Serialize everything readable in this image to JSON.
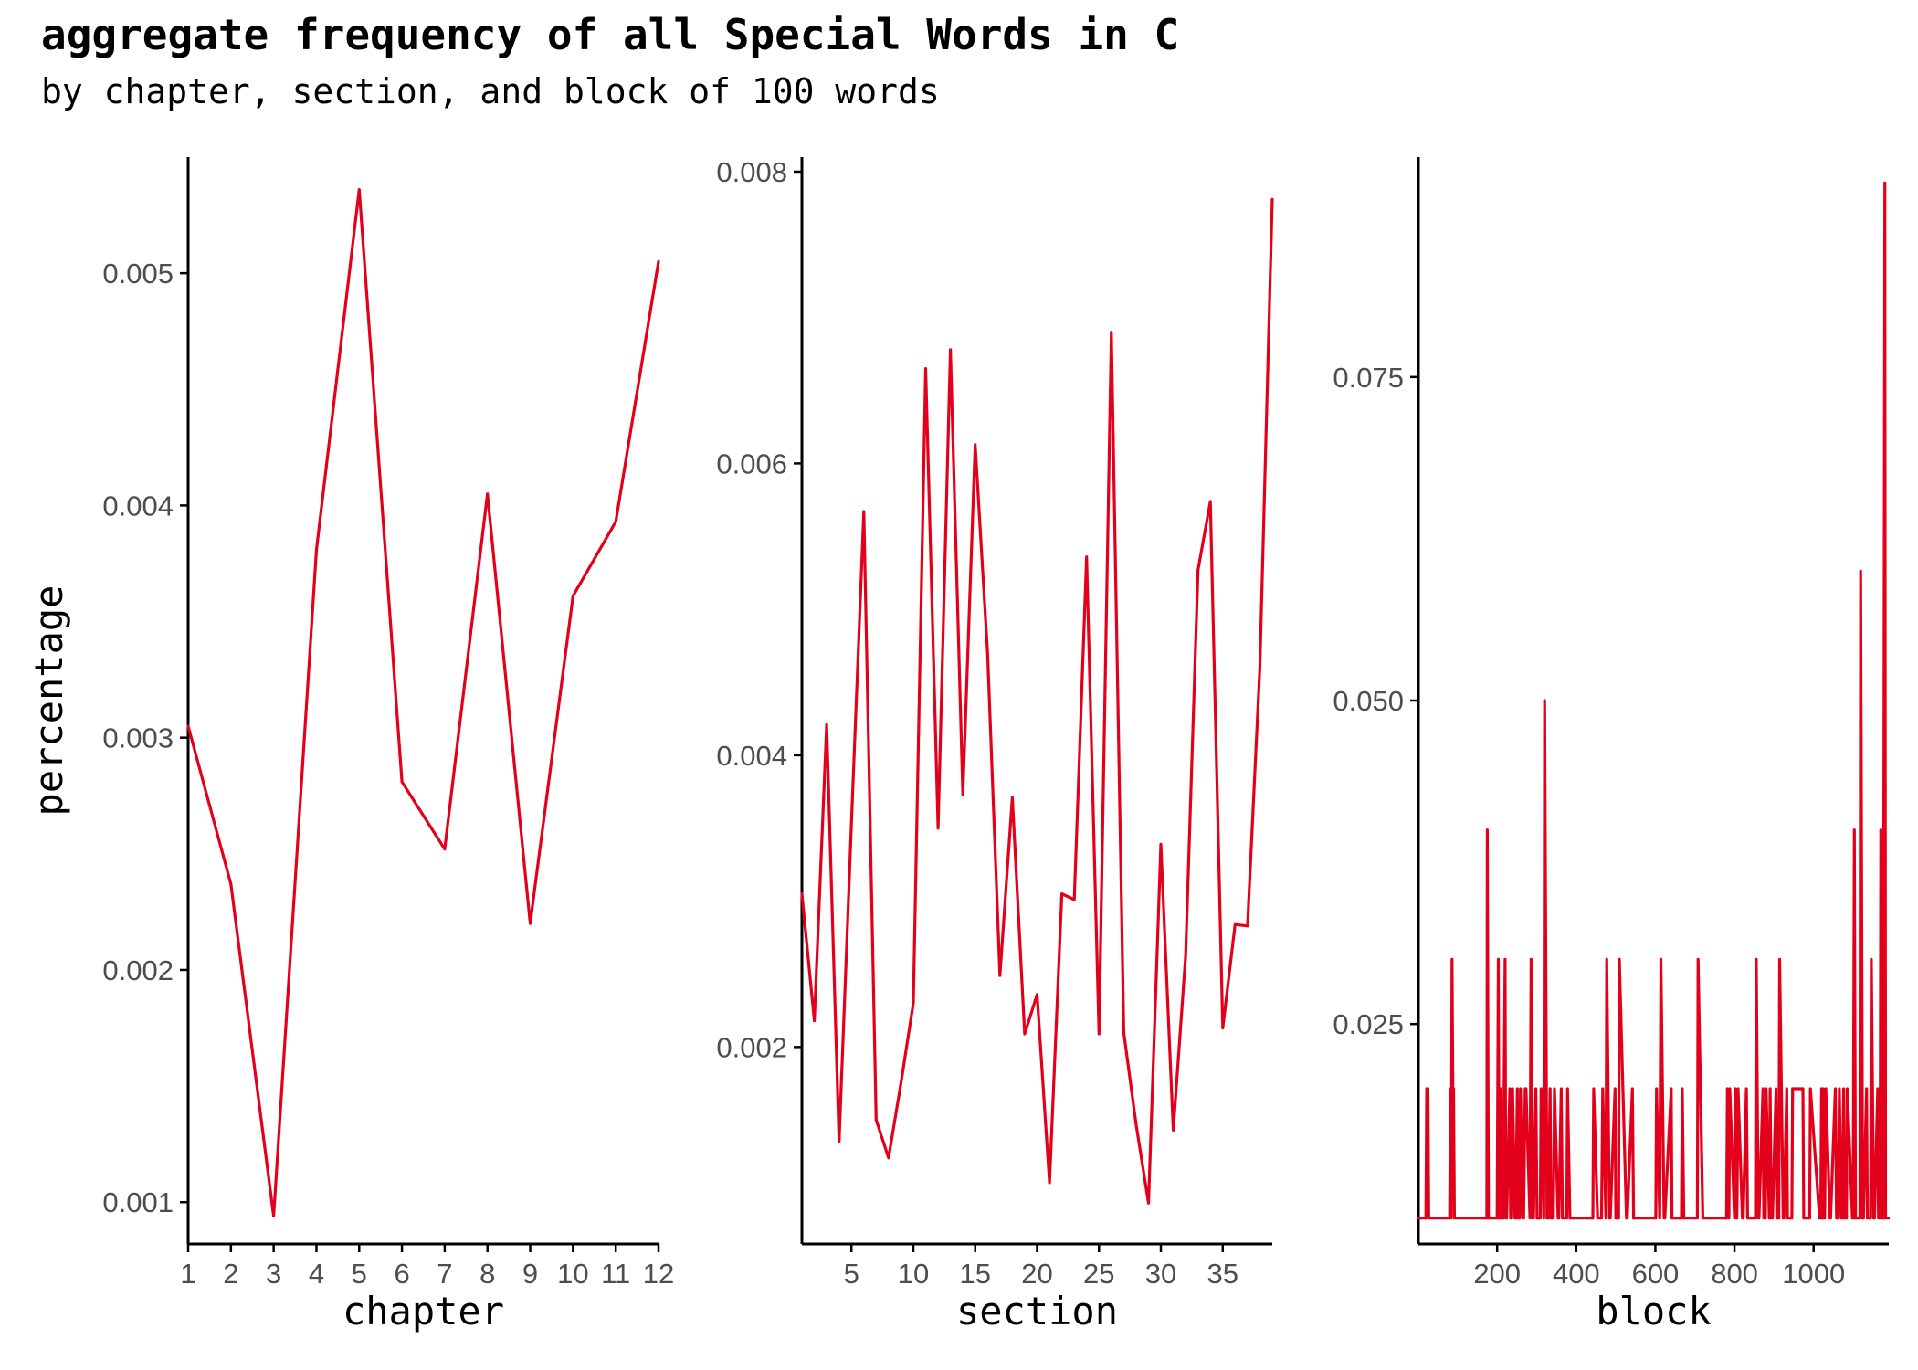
{
  "title": "aggregate frequency of all Special Words in C",
  "subtitle": "by chapter, section, and block of 100 words",
  "line_color": "#e3001b",
  "chart_data": [
    {
      "type": "line",
      "panel": "chapter",
      "xlabel": "chapter",
      "ylabel": "percentage",
      "xlim": [
        1,
        12
      ],
      "ylim": [
        0.00082,
        0.0055
      ],
      "x_ticks": [
        1,
        2,
        3,
        4,
        5,
        6,
        7,
        8,
        9,
        10,
        11,
        12
      ],
      "x_tick_labels": [
        "1",
        "2",
        "3",
        "4",
        "5",
        "6",
        "7",
        "8",
        "9",
        "10",
        "11",
        "12"
      ],
      "y_ticks": [
        0.001,
        0.002,
        0.003,
        0.004,
        0.005
      ],
      "y_tick_labels": [
        "0.001",
        "0.002",
        "0.003",
        "0.004",
        "0.005"
      ],
      "grid": false,
      "x": [
        1,
        2,
        3,
        4,
        5,
        6,
        7,
        8,
        9,
        10,
        11,
        12
      ],
      "values": [
        0.00305,
        0.00237,
        0.00094,
        0.00381,
        0.00536,
        0.00281,
        0.00252,
        0.00405,
        0.0022,
        0.00361,
        0.00393,
        0.00505
      ]
    },
    {
      "type": "line",
      "panel": "section",
      "xlabel": "section",
      "ylabel": "",
      "xlim": [
        1,
        39
      ],
      "ylim": [
        0.00065,
        0.0081
      ],
      "x_ticks": [
        5,
        10,
        15,
        20,
        25,
        30,
        35
      ],
      "x_tick_labels": [
        "5",
        "10",
        "15",
        "20",
        "25",
        "30",
        "35"
      ],
      "y_ticks": [
        0.002,
        0.004,
        0.006,
        0.008
      ],
      "y_tick_labels": [
        "0.002",
        "0.004",
        "0.006",
        "0.008"
      ],
      "grid": false,
      "x": [
        1,
        2,
        3,
        4,
        5,
        6,
        7,
        8,
        9,
        10,
        11,
        12,
        13,
        14,
        15,
        16,
        17,
        18,
        19,
        20,
        21,
        22,
        23,
        24,
        25,
        26,
        27,
        28,
        29,
        30,
        31,
        32,
        33,
        34,
        35,
        36,
        37,
        38,
        39
      ],
      "values": [
        0.00305,
        0.00218,
        0.00421,
        0.00135,
        0.00353,
        0.00567,
        0.0015,
        0.00124,
        0.00175,
        0.0023,
        0.00665,
        0.0035,
        0.00678,
        0.00373,
        0.00613,
        0.0047,
        0.00249,
        0.00371,
        0.00209,
        0.00236,
        0.00107,
        0.00305,
        0.00301,
        0.00536,
        0.00209,
        0.0069,
        0.0021,
        0.00147,
        0.00093,
        0.00339,
        0.00143,
        0.00262,
        0.00527,
        0.00574,
        0.00213,
        0.00284,
        0.00283,
        0.0046,
        0.00781
      ]
    },
    {
      "type": "line",
      "panel": "block",
      "xlabel": "block",
      "ylabel": "",
      "xlim": [
        1,
        1190
      ],
      "ylim": [
        0.008,
        0.092
      ],
      "x_ticks": [
        200,
        400,
        600,
        800,
        1000
      ],
      "x_tick_labels": [
        "200",
        "400",
        "600",
        "800",
        "1000"
      ],
      "y_ticks": [
        0.025,
        0.05,
        0.075
      ],
      "y_tick_labels": [
        "0.025",
        "0.050",
        "0.075"
      ],
      "grid": false,
      "baseline": 0.01,
      "x": [
        1,
        20,
        22,
        25,
        27,
        30,
        80,
        82,
        84,
        86,
        88,
        90,
        92,
        94,
        98,
        100,
        102,
        104,
        174,
        175,
        178,
        182,
        198,
        200,
        203,
        205,
        209,
        211,
        215,
        220,
        222,
        224,
        232,
        234,
        237,
        239,
        245,
        247,
        251,
        253,
        257,
        259,
        265,
        267,
        271,
        273,
        283,
        286,
        290,
        292,
        298,
        301,
        309,
        311,
        318,
        320,
        326,
        329,
        334,
        336,
        342,
        345,
        354,
        356,
        362,
        365,
        376,
        378,
        384,
        387,
        442,
        444,
        454,
        456,
        464,
        467,
        475,
        477,
        484,
        486,
        498,
        500,
        507,
        509,
        527,
        529,
        542,
        545,
        601,
        603,
        611,
        614,
        622,
        624,
        640,
        642,
        666,
        668,
        672,
        676,
        706,
        708,
        720,
        723,
        780,
        782,
        786,
        788,
        800,
        802,
        806,
        809,
        820,
        822,
        830,
        833,
        853,
        855,
        860,
        862,
        872,
        874,
        878,
        880,
        888,
        890,
        893,
        896,
        905,
        907,
        912,
        914,
        923,
        925,
        932,
        934,
        945,
        947,
        973,
        975,
        990,
        992,
        1015,
        1018,
        1020,
        1022,
        1024,
        1026,
        1028,
        1031,
        1041,
        1043,
        1055,
        1058,
        1062,
        1065,
        1070,
        1072,
        1076,
        1078,
        1083,
        1085,
        1098,
        1100,
        1103,
        1106,
        1117,
        1119,
        1124,
        1126,
        1134,
        1136,
        1144,
        1146,
        1152,
        1154,
        1162,
        1164,
        1168,
        1170,
        1174,
        1176,
        1180,
        1182,
        1188,
        1189
      ],
      "values": [
        0.01,
        0.01,
        0.02,
        0.02,
        0.01,
        0.01,
        0.01,
        0.02,
        0.01,
        0.03,
        0.02,
        0.02,
        0.01,
        0.01,
        0.01,
        0.01,
        0.01,
        0.01,
        0.01,
        0.04,
        0.01,
        0.01,
        0.01,
        0.01,
        0.03,
        0.01,
        0.02,
        0.01,
        0.01,
        0.03,
        0.01,
        0.01,
        0.02,
        0.01,
        0.01,
        0.02,
        0.01,
        0.01,
        0.02,
        0.01,
        0.01,
        0.02,
        0.01,
        0.01,
        0.02,
        0.02,
        0.01,
        0.03,
        0.01,
        0.01,
        0.02,
        0.01,
        0.01,
        0.02,
        0.01,
        0.05,
        0.01,
        0.01,
        0.02,
        0.01,
        0.01,
        0.02,
        0.01,
        0.01,
        0.02,
        0.01,
        0.01,
        0.02,
        0.01,
        0.01,
        0.01,
        0.02,
        0.01,
        0.01,
        0.01,
        0.02,
        0.01,
        0.03,
        0.01,
        0.01,
        0.02,
        0.01,
        0.01,
        0.03,
        0.01,
        0.01,
        0.02,
        0.01,
        0.01,
        0.02,
        0.01,
        0.03,
        0.01,
        0.01,
        0.02,
        0.01,
        0.01,
        0.02,
        0.01,
        0.01,
        0.01,
        0.03,
        0.01,
        0.01,
        0.01,
        0.02,
        0.01,
        0.02,
        0.01,
        0.02,
        0.01,
        0.02,
        0.01,
        0.01,
        0.02,
        0.01,
        0.01,
        0.03,
        0.01,
        0.01,
        0.02,
        0.01,
        0.01,
        0.02,
        0.01,
        0.02,
        0.01,
        0.01,
        0.02,
        0.01,
        0.01,
        0.03,
        0.01,
        0.01,
        0.02,
        0.01,
        0.01,
        0.02,
        0.02,
        0.01,
        0.01,
        0.02,
        0.01,
        0.01,
        0.02,
        0.01,
        0.02,
        0.01,
        0.01,
        0.02,
        0.01,
        0.01,
        0.02,
        0.01,
        0.01,
        0.02,
        0.01,
        0.01,
        0.02,
        0.01,
        0.01,
        0.02,
        0.01,
        0.01,
        0.04,
        0.01,
        0.01,
        0.06,
        0.01,
        0.01,
        0.02,
        0.01,
        0.01,
        0.03,
        0.01,
        0.01,
        0.02,
        0.01,
        0.01,
        0.04,
        0.01,
        0.01,
        0.09,
        0.01,
        0.01,
        0.01
      ]
    }
  ]
}
